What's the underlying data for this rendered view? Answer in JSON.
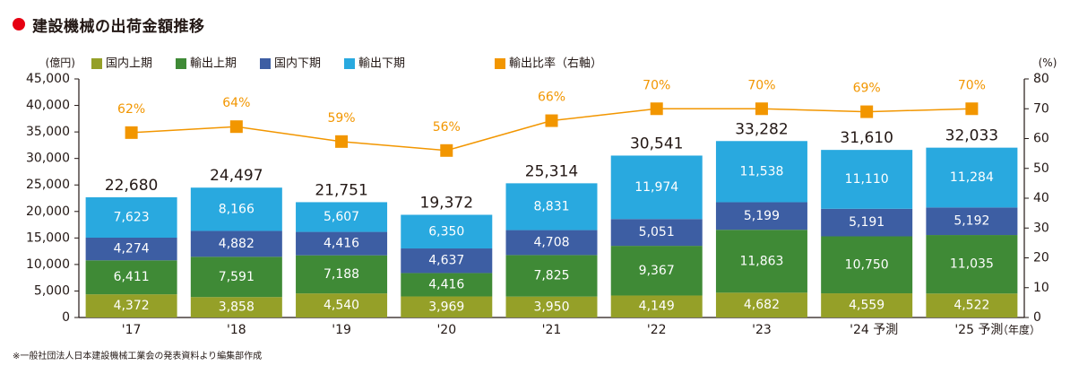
{
  "title": "建設機械の出荷金額推移",
  "note": "※一般社団法人日本建設機械工業会の発表資料より編集部作成",
  "colors": {
    "domestic_first": "#95a028",
    "export_first": "#3f8a36",
    "domestic_second": "#3d5ea3",
    "export_second": "#29a9df",
    "ratio": "#f29600",
    "title_dot": "#e60012",
    "axis": "#231815"
  },
  "chart_data": {
    "type": "bar",
    "stacked": true,
    "categories": [
      "'17",
      "'18",
      "'19",
      "'20",
      "'21",
      "'22",
      "'23",
      "'24 予測",
      "'25 予測"
    ],
    "x_unit": "（年度）",
    "y_unit_left": "(億円)",
    "y_unit_right": "(%)",
    "ylim": [
      0,
      45000
    ],
    "y_ticks_left": [
      "0",
      "5,000",
      "10,000",
      "15,000",
      "20,000",
      "25,000",
      "30,000",
      "35,000",
      "40,000",
      "45,000"
    ],
    "y2lim": [
      0,
      80
    ],
    "y_ticks_right": [
      "0",
      "10",
      "20",
      "30",
      "40",
      "50",
      "60",
      "70",
      "80"
    ],
    "series": [
      {
        "name": "国内上期",
        "values": [
          4372,
          3858,
          4540,
          3969,
          3950,
          4149,
          4682,
          4559,
          4522
        ],
        "labels": [
          "4,372",
          "3,858",
          "4,540",
          "3,969",
          "3,950",
          "4,149",
          "4,682",
          "4,559",
          "4,522"
        ]
      },
      {
        "name": "輸出上期",
        "values": [
          6411,
          7591,
          7188,
          4416,
          7825,
          9367,
          11863,
          10750,
          11035
        ],
        "labels": [
          "6,411",
          "7,591",
          "7,188",
          "4,416",
          "7,825",
          "9,367",
          "11,863",
          "10,750",
          "11,035"
        ]
      },
      {
        "name": "国内下期",
        "values": [
          4274,
          4882,
          4416,
          4637,
          4708,
          5051,
          5199,
          5191,
          5192
        ],
        "labels": [
          "4,274",
          "4,882",
          "4,416",
          "4,637",
          "4,708",
          "5,051",
          "5,199",
          "5,191",
          "5,192"
        ]
      },
      {
        "name": "輸出下期",
        "values": [
          7623,
          8166,
          5607,
          6350,
          8831,
          11974,
          11538,
          11110,
          11284
        ],
        "labels": [
          "7,623",
          "8,166",
          "5,607",
          "6,350",
          "8,831",
          "11,974",
          "11,538",
          "11,110",
          "11,284"
        ]
      }
    ],
    "totals": [
      22680,
      24497,
      21751,
      19372,
      25314,
      30541,
      33282,
      31610,
      32033
    ],
    "total_labels": [
      "22,680",
      "24,497",
      "21,751",
      "19,372",
      "25,314",
      "30,541",
      "33,282",
      "31,610",
      "32,033"
    ],
    "line_series": {
      "name": "輸出比率（右軸）",
      "values": [
        62,
        64,
        59,
        56,
        66,
        70,
        70,
        69,
        70
      ],
      "labels": [
        "62%",
        "64%",
        "59%",
        "56%",
        "66%",
        "70%",
        "70%",
        "69%",
        "70%"
      ]
    },
    "legend_position": "top"
  }
}
